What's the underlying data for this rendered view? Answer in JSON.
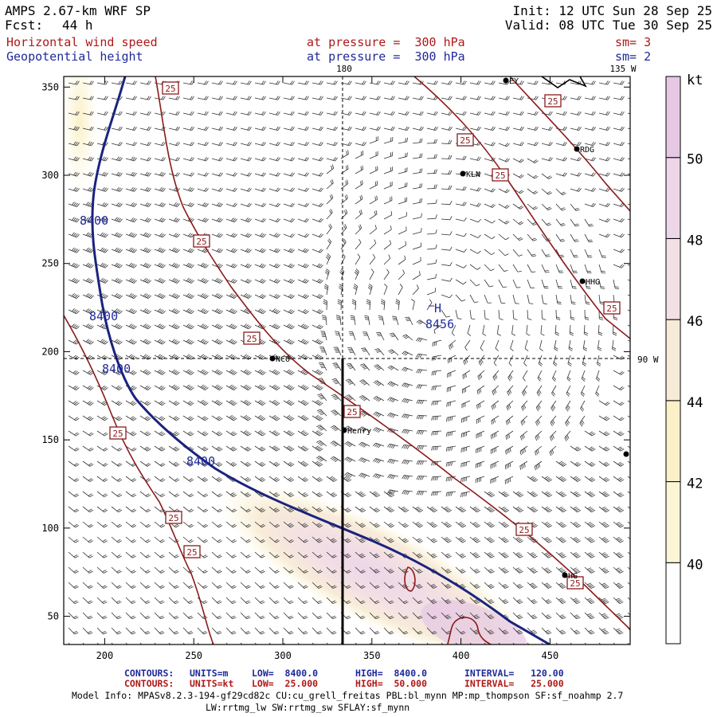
{
  "header": {
    "model": "AMPS 2.67-km WRF SP",
    "fcst_label": "Fcst:",
    "fcst_value": "44 h",
    "init": "Init: 12 UTC Sun 28 Sep 25",
    "valid": "Valid: 08 UTC Tue 30 Sep 25",
    "field1_name": "Horizontal wind speed",
    "field1_level": "at pressure =  300 hPa",
    "field1_sm": "sm= 3",
    "field2_name": "Geopotential height",
    "field2_level": "at pressure =  300 hPa",
    "field2_sm": "sm= 2"
  },
  "map": {
    "meridian_180": "180",
    "meridian_135w": "135 W",
    "meridian_90w": "90 W",
    "x_ticks": [
      200,
      250,
      300,
      350,
      400,
      450
    ],
    "y_ticks": [
      50,
      100,
      150,
      200,
      250,
      300,
      350
    ],
    "x_range": [
      177,
      495
    ],
    "y_range": [
      34,
      356
    ],
    "height_labels": [
      "8400",
      "8400",
      "8400",
      "8400"
    ],
    "high_marker": "H",
    "high_value": "8456",
    "wind_contour_label": "25",
    "stations": [
      "EY",
      "RDG",
      "KLN",
      "HHG",
      "NCO",
      "Henry",
      "HG"
    ]
  },
  "colorbar": {
    "unit": "kt",
    "labels": [
      "50",
      "48",
      "46",
      "44",
      "42",
      "40"
    ],
    "colors": [
      "#ffffff",
      "#fdf6d6",
      "#fbf0c8",
      "#f6ead8",
      "#f3e0e4",
      "#ecd6e8",
      "#e6c8e4"
    ]
  },
  "footer": {
    "c1_tag": "CONTOURS:",
    "c1_units": "UNITS=m",
    "c1_low": "LOW=  8400.0",
    "c1_high": "HIGH=  8400.0",
    "c1_interval": "INTERVAL=   120.00",
    "c2_tag": "CONTOURS:",
    "c2_units": "UNITS=kt",
    "c2_low": "LOW=  25.000",
    "c2_high": "HIGH=  50.000",
    "c2_interval": "INTERVAL=   25.000",
    "model_info_1": "Model Info: MPASv8.2.3-194-gf29cd82c CU:cu_grell_freitas PBL:bl_mynn MP:mp_thompson SF:sf_noahmp 2.7",
    "model_info_2": "LW:rrtmg_lw SW:rrtmg_sw SFLAY:sf_mynn"
  }
}
